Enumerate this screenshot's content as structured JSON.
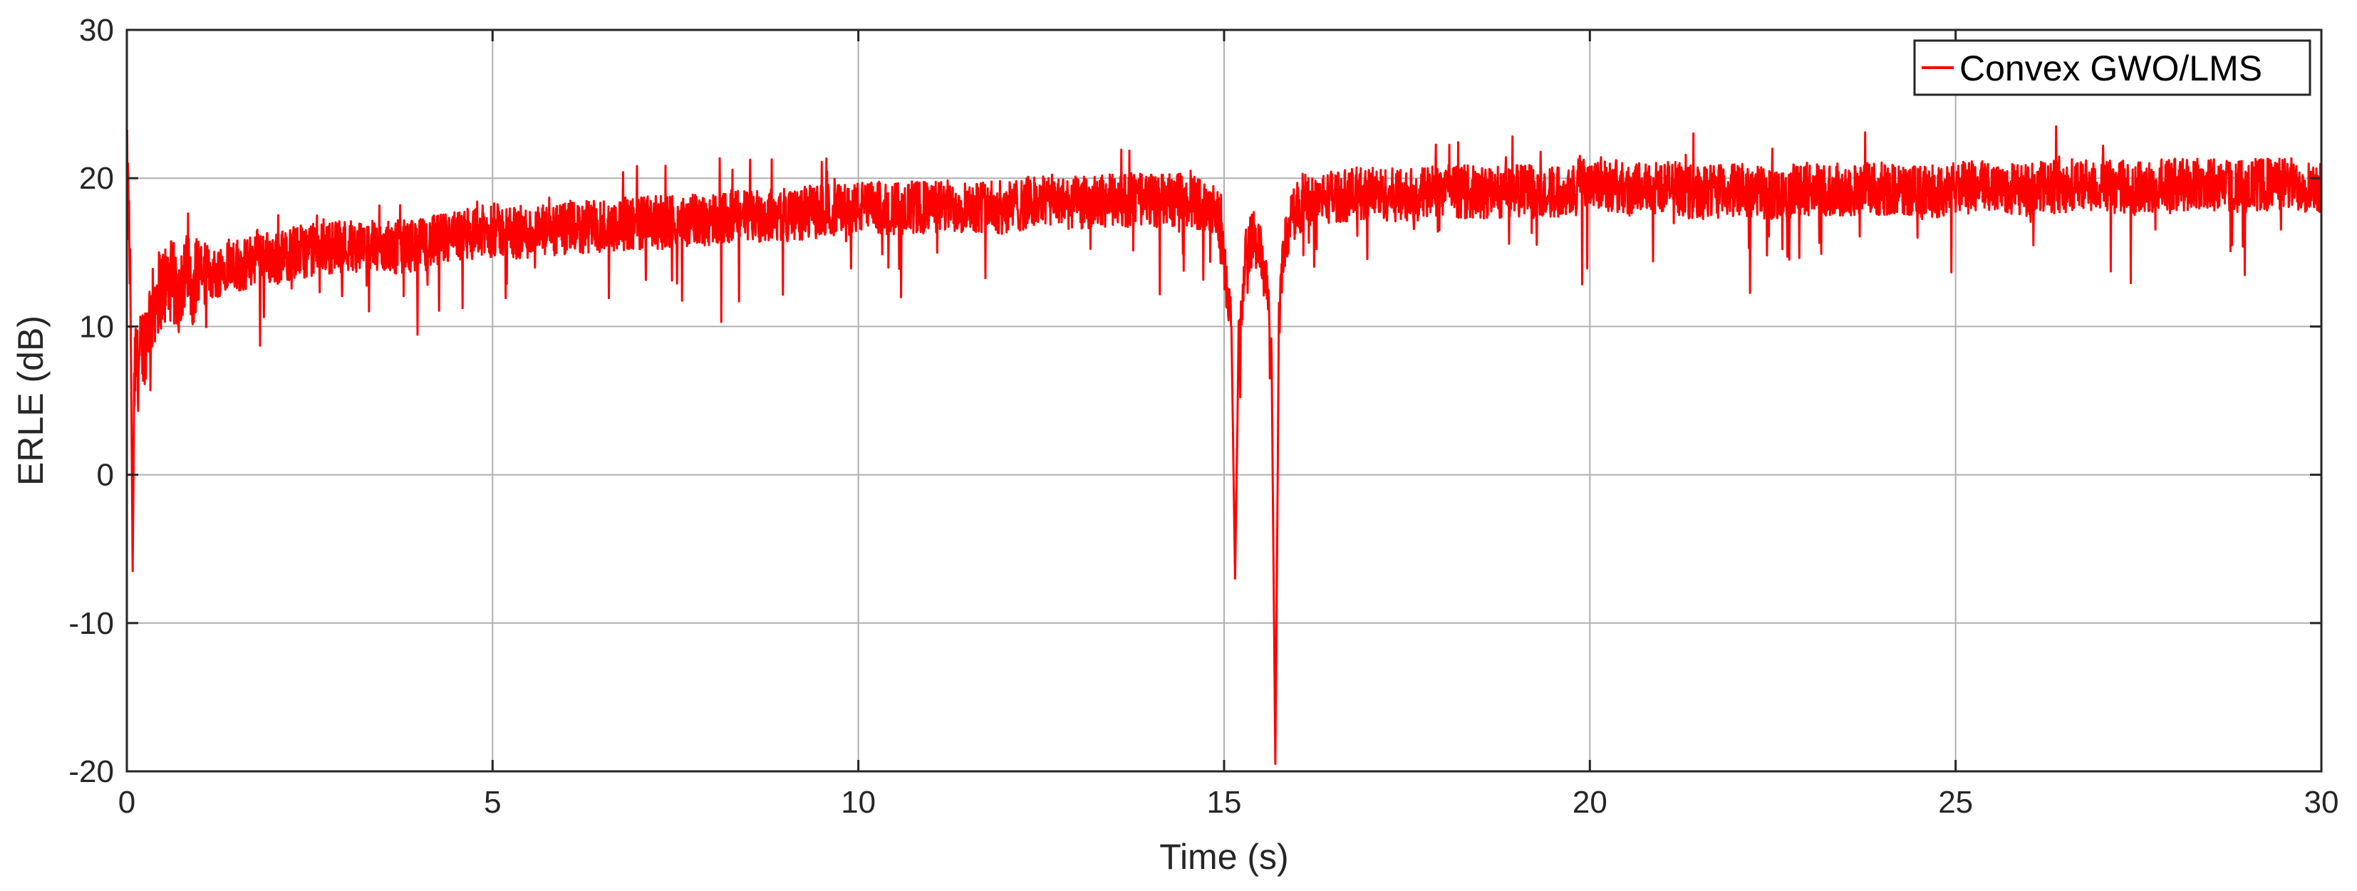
{
  "chart_data": {
    "type": "line",
    "title": "",
    "xlabel": "Time (s)",
    "ylabel": "ERLE (dB)",
    "xlim": [
      0,
      30
    ],
    "ylim": [
      -20,
      30
    ],
    "xticks": [
      0,
      5,
      10,
      15,
      20,
      25,
      30
    ],
    "yticks": [
      -20,
      -10,
      0,
      10,
      20,
      30
    ],
    "xtick_labels": [
      "0",
      "5",
      "10",
      "15",
      "20",
      "25",
      "30"
    ],
    "ytick_labels": [
      "-20",
      "-10",
      "0",
      "10",
      "20",
      "30"
    ],
    "grid": true,
    "legend": {
      "position": "top-right",
      "entries": [
        "Convex GWO/LMS"
      ]
    },
    "series": [
      {
        "name": "Convex GWO/LMS",
        "color": "#ff0000",
        "x": [
          0,
          0.02,
          0.05,
          0.08,
          0.1,
          0.12,
          0.15,
          0.2,
          0.25,
          0.3,
          0.35,
          0.4,
          0.45,
          0.5,
          0.6,
          0.7,
          0.8,
          0.9,
          1.0,
          1.2,
          1.4,
          1.6,
          1.8,
          2.0,
          2.3,
          2.6,
          3.0,
          3.5,
          4.0,
          4.5,
          5.0,
          5.5,
          6.0,
          6.5,
          7.0,
          7.5,
          8.0,
          8.5,
          9.0,
          9.5,
          10.0,
          10.5,
          11.0,
          11.5,
          12.0,
          12.5,
          13.0,
          13.5,
          14.0,
          14.5,
          14.9,
          15.0,
          15.05,
          15.1,
          15.15,
          15.2,
          15.25,
          15.3,
          15.4,
          15.5,
          15.6,
          15.65,
          15.7,
          15.75,
          15.8,
          15.9,
          16.0,
          16.2,
          16.5,
          17.0,
          17.5,
          18.0,
          18.5,
          19.0,
          19.5,
          20.0,
          20.5,
          21.0,
          21.5,
          22.0,
          22.5,
          23.0,
          23.5,
          24.0,
          24.5,
          25.0,
          25.5,
          26.0,
          26.5,
          27.0,
          27.5,
          28.0,
          28.5,
          29.0,
          29.5,
          30.0
        ],
        "y": [
          21.0,
          18.5,
          12.0,
          -6.5,
          5.0,
          8.0,
          7.0,
          8.5,
          9.0,
          10.5,
          11.0,
          12.0,
          12.5,
          12.8,
          13.0,
          12.5,
          13.5,
          13.0,
          14.0,
          13.5,
          14.5,
          14.0,
          15.0,
          14.5,
          15.0,
          15.2,
          15.5,
          15.3,
          15.5,
          16.0,
          16.5,
          16.3,
          16.5,
          16.8,
          17.0,
          17.0,
          17.3,
          17.5,
          17.5,
          17.8,
          18.0,
          18.0,
          18.0,
          18.2,
          18.0,
          18.5,
          18.3,
          18.5,
          18.5,
          18.5,
          18.0,
          14.0,
          12.0,
          10.0,
          -7.0,
          9.0,
          12.0,
          15.0,
          16.0,
          15.0,
          12.0,
          8.0,
          -19.5,
          10.0,
          15.0,
          17.0,
          18.0,
          18.5,
          18.8,
          19.0,
          18.8,
          19.2,
          19.0,
          19.2,
          19.0,
          20.0,
          19.2,
          19.5,
          19.0,
          19.2,
          19.0,
          19.3,
          19.2,
          19.3,
          19.0,
          19.3,
          19.5,
          19.2,
          19.5,
          19.5,
          19.3,
          19.6,
          19.5,
          19.5,
          19.6,
          19.5
        ],
        "noise_amplitude_db": 1.8
      }
    ]
  }
}
